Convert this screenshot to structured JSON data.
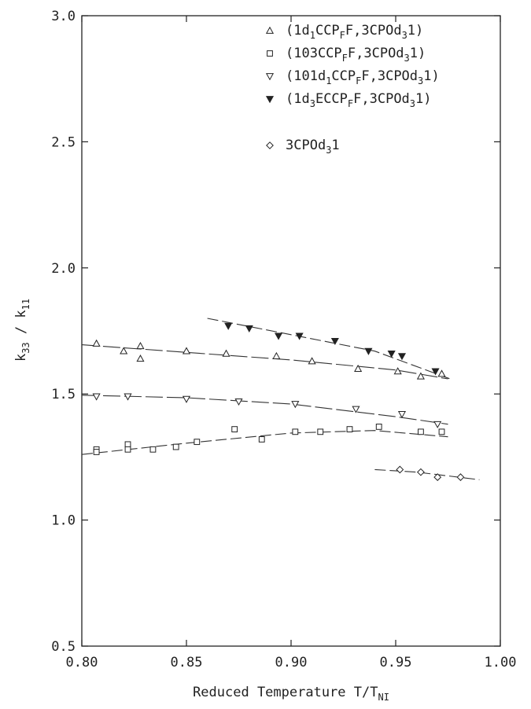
{
  "chart_data": {
    "type": "scatter",
    "xlabel": {
      "main": "Reduced Temperature T/T",
      "sub": "NI"
    },
    "ylabel": {
      "k": "k",
      "num_sub": "33",
      "sep": " / k",
      "den_sub": "11"
    },
    "xlim": [
      0.8,
      1.0
    ],
    "ylim": [
      0.5,
      3.0
    ],
    "xticks": [
      "0.80",
      "0.85",
      "0.90",
      "0.95",
      "1.00"
    ],
    "yticks": [
      "0.5",
      "1.0",
      "1.5",
      "2.0",
      "2.5",
      "3.0"
    ],
    "grid": false,
    "legend_position": "top-right",
    "series": [
      {
        "name": "(1d1CCPFF,3CPOd31)",
        "label_parts": [
          [
            "(1d",
            ""
          ],
          [
            "1",
            "sub"
          ],
          [
            "CCP",
            ""
          ],
          [
            "F",
            "sub"
          ],
          [
            "F,3CPOd",
            ""
          ],
          [
            "3",
            "sub"
          ],
          [
            "1)",
            ""
          ]
        ],
        "marker": "triangle-up",
        "line": "long-dash",
        "x": [
          0.807,
          0.82,
          0.828,
          0.828,
          0.85,
          0.869,
          0.893,
          0.91,
          0.932,
          0.951,
          0.962,
          0.972
        ],
        "y": [
          1.7,
          1.67,
          1.69,
          1.64,
          1.67,
          1.66,
          1.65,
          1.63,
          1.6,
          1.59,
          1.57,
          1.58
        ],
        "fit": {
          "x": [
            0.8,
            0.85,
            0.9,
            0.95,
            0.975
          ],
          "y": [
            1.695,
            1.665,
            1.635,
            1.595,
            1.56
          ]
        }
      },
      {
        "name": "(103CCPFF,3CPOd31)",
        "label_parts": [
          [
            "(103CCP",
            ""
          ],
          [
            "F",
            "sub"
          ],
          [
            "F,3CPOd",
            ""
          ],
          [
            "3",
            "sub"
          ],
          [
            "1)",
            ""
          ]
        ],
        "marker": "square",
        "line": "dashed",
        "x": [
          0.807,
          0.807,
          0.822,
          0.822,
          0.834,
          0.845,
          0.855,
          0.873,
          0.886,
          0.902,
          0.914,
          0.928,
          0.942,
          0.962,
          0.972
        ],
        "y": [
          1.28,
          1.27,
          1.3,
          1.28,
          1.28,
          1.29,
          1.31,
          1.36,
          1.32,
          1.35,
          1.35,
          1.36,
          1.37,
          1.35,
          1.35
        ],
        "fit": {
          "x": [
            0.8,
            0.85,
            0.9,
            0.94,
            0.975
          ],
          "y": [
            1.26,
            1.305,
            1.345,
            1.355,
            1.33
          ]
        }
      },
      {
        "name": "(101d1CCPFF,3CPOd31)",
        "label_parts": [
          [
            "(101d",
            ""
          ],
          [
            "1",
            "sub"
          ],
          [
            "CCP",
            ""
          ],
          [
            "F",
            "sub"
          ],
          [
            "F,3CPOd",
            ""
          ],
          [
            "3",
            "sub"
          ],
          [
            "1)",
            ""
          ]
        ],
        "marker": "triangle-down",
        "line": "long-dash",
        "x": [
          0.807,
          0.822,
          0.85,
          0.875,
          0.902,
          0.931,
          0.953,
          0.97
        ],
        "y": [
          1.49,
          1.49,
          1.48,
          1.47,
          1.46,
          1.44,
          1.42,
          1.38
        ],
        "fit": {
          "x": [
            0.8,
            0.85,
            0.9,
            0.95,
            0.975
          ],
          "y": [
            1.495,
            1.485,
            1.46,
            1.41,
            1.38
          ]
        }
      },
      {
        "name": "(1d3ECCPFF,3CPOd31)",
        "label_parts": [
          [
            "(1d",
            ""
          ],
          [
            "3",
            "sub"
          ],
          [
            "ECCP",
            ""
          ],
          [
            "F",
            "sub"
          ],
          [
            "F,3CPOd",
            ""
          ],
          [
            "3",
            "sub"
          ],
          [
            "1)",
            ""
          ]
        ],
        "marker": "triangle-down-filled",
        "line": "dashed",
        "x": [
          0.87,
          0.88,
          0.894,
          0.904,
          0.921,
          0.937,
          0.948,
          0.953,
          0.969
        ],
        "y": [
          1.77,
          1.76,
          1.73,
          1.73,
          1.71,
          1.67,
          1.66,
          1.65,
          1.59
        ],
        "fit": {
          "x": [
            0.86,
            0.9,
            0.94,
            0.976
          ],
          "y": [
            1.8,
            1.735,
            1.67,
            1.56
          ]
        }
      },
      {
        "name": "3CPOd31",
        "label_parts": [
          [
            "3CPOd",
            ""
          ],
          [
            "3",
            "sub"
          ],
          [
            "1",
            ""
          ]
        ],
        "marker": "diamond",
        "line": "dashed",
        "x": [
          0.952,
          0.962,
          0.97,
          0.981
        ],
        "y": [
          1.2,
          1.19,
          1.17,
          1.17
        ],
        "fit": {
          "x": [
            0.94,
            0.96,
            0.99
          ],
          "y": [
            1.2,
            1.19,
            1.16
          ]
        }
      }
    ]
  }
}
